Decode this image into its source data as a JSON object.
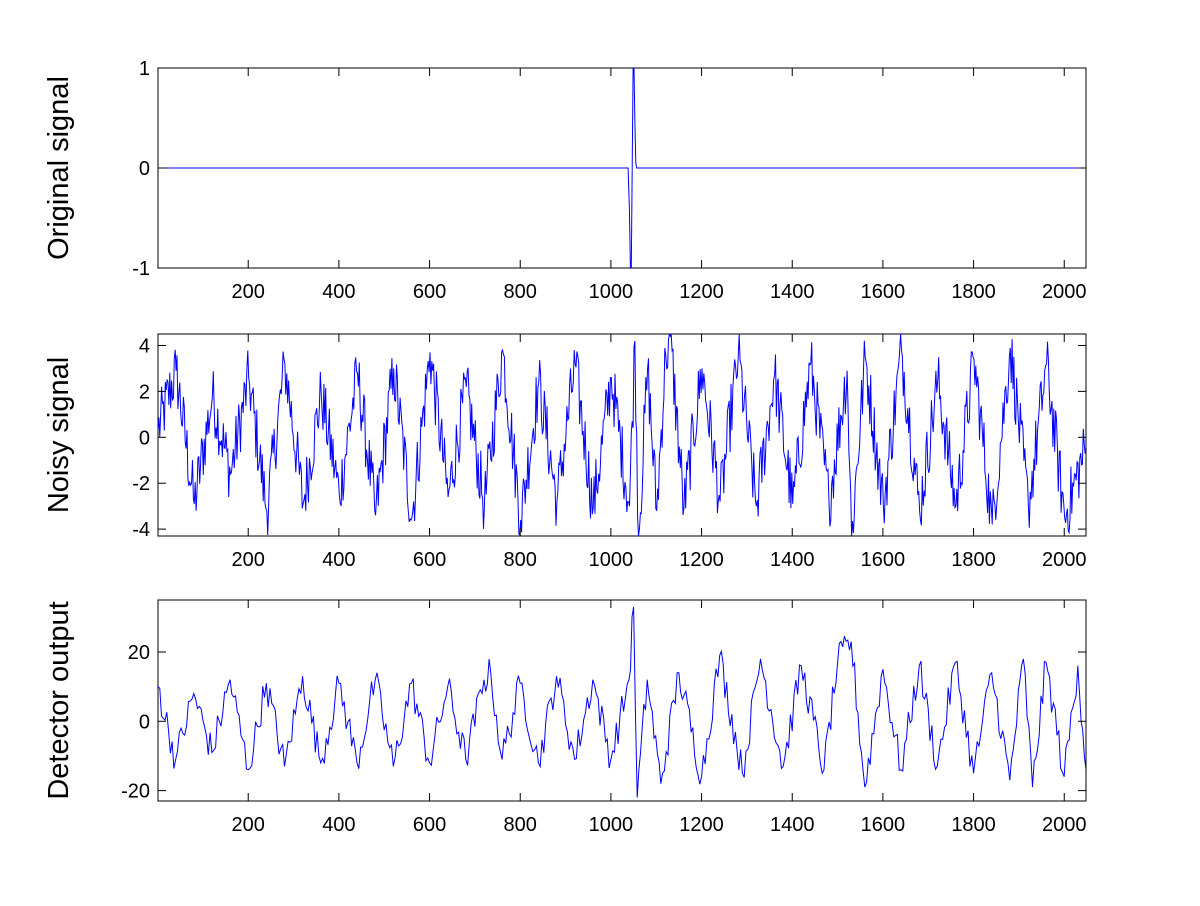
{
  "chart_data": [
    {
      "type": "line",
      "title": "",
      "xlabel": "",
      "ylabel": "Original signal",
      "xlim": [
        1,
        2048
      ],
      "ylim": [
        -1,
        1
      ],
      "grid": false,
      "xticks": [
        200,
        400,
        600,
        800,
        1000,
        1200,
        1400,
        1600,
        1800,
        2000
      ],
      "xtick_labels": [
        "200",
        "400",
        "600",
        "800",
        "1000",
        "1200",
        "1400",
        "1600",
        "1800",
        "2000"
      ],
      "yticks": [
        -1,
        0,
        1
      ],
      "ytick_labels": [
        "-1",
        "0",
        "1"
      ],
      "color": "#0000ff",
      "series": [
        {
          "x": [
            1,
            1038,
            1041,
            1043,
            1045,
            1047,
            1049,
            1051,
            1053,
            1055,
            1057,
            2048
          ],
          "y": [
            0,
            0,
            -0.45,
            -1.0,
            -1.0,
            0.0,
            1.0,
            1.0,
            0.45,
            0.05,
            0,
            0
          ]
        }
      ]
    },
    {
      "type": "line",
      "title": "",
      "xlabel": "",
      "ylabel": "Noisy signal",
      "xlim": [
        1,
        2048
      ],
      "ylim": [
        -4.3,
        4.5
      ],
      "grid": false,
      "xticks": [
        200,
        400,
        600,
        800,
        1000,
        1200,
        1400,
        1600,
        1800,
        2000
      ],
      "xtick_labels": [
        "200",
        "400",
        "600",
        "800",
        "1000",
        "1200",
        "1400",
        "1600",
        "1800",
        "2000"
      ],
      "yticks": [
        -4,
        -2,
        0,
        2,
        4
      ],
      "ytick_labels": [
        "-4",
        "-2",
        "0",
        "2",
        "4"
      ],
      "color": "#0000ff",
      "series": [
        {
          "x": [
            1,
            41,
            81,
            121,
            161,
            201,
            241,
            281,
            321,
            361,
            401,
            441,
            481,
            521,
            561,
            601,
            641,
            681,
            721,
            761,
            801,
            841,
            881,
            921,
            961,
            1001,
            1041,
            1053,
            1061,
            1081,
            1101,
            1121,
            1131,
            1161,
            1201,
            1241,
            1281,
            1321,
            1361,
            1401,
            1441,
            1481,
            1521,
            1531,
            1561,
            1601,
            1641,
            1681,
            1721,
            1761,
            1801,
            1841,
            1881,
            1921,
            1961,
            2001,
            2048
          ],
          "y": [
            0.3,
            2.9,
            -2.9,
            1.8,
            -1.6,
            2.6,
            -3.2,
            3.2,
            -2.9,
            1.9,
            -2.5,
            2.8,
            -3.4,
            3.0,
            -3.5,
            3.7,
            -2.6,
            2.2,
            -3.0,
            3.8,
            -3.6,
            2.4,
            -2.8,
            3.2,
            -3.1,
            2.6,
            -3.0,
            4.2,
            -4.3,
            3.0,
            -3.2,
            3.6,
            4.4,
            -3.1,
            3.0,
            -2.8,
            3.6,
            -3.0,
            2.7,
            -2.9,
            3.2,
            -2.8,
            2.9,
            -4.3,
            3.5,
            -3.0,
            3.8,
            -3.2,
            2.5,
            -3.0,
            3.4,
            -3.8,
            3.9,
            -3.0,
            3.2,
            -3.5,
            -0.4
          ]
        }
      ]
    },
    {
      "type": "line",
      "title": "",
      "xlabel": "",
      "ylabel": "Detector output",
      "xlim": [
        1,
        2048
      ],
      "ylim": [
        -23,
        35
      ],
      "grid": false,
      "xticks": [
        200,
        400,
        600,
        800,
        1000,
        1200,
        1400,
        1600,
        1800,
        2000
      ],
      "xtick_labels": [
        "200",
        "400",
        "600",
        "800",
        "1000",
        "1200",
        "1400",
        "1600",
        "1800",
        "2000"
      ],
      "yticks": [
        -20,
        0,
        20
      ],
      "ytick_labels": [
        "-20",
        "0",
        "20"
      ],
      "color": "#0000ff",
      "series": [
        {
          "x": [
            1,
            40,
            80,
            120,
            160,
            200,
            240,
            280,
            320,
            360,
            400,
            440,
            480,
            520,
            560,
            600,
            640,
            680,
            720,
            735,
            760,
            800,
            840,
            880,
            920,
            960,
            1000,
            1040,
            1050,
            1058,
            1080,
            1110,
            1150,
            1200,
            1240,
            1290,
            1330,
            1380,
            1420,
            1470,
            1500,
            1530,
            1560,
            1600,
            1640,
            1680,
            1720,
            1760,
            1800,
            1840,
            1880,
            1910,
            1930,
            1960,
            2000,
            2030,
            2048
          ],
          "y": [
            10,
            -11,
            8,
            -9,
            12,
            -14,
            11,
            -13,
            13,
            -12,
            11,
            -12,
            12,
            -13,
            11,
            -12,
            10,
            -11,
            12,
            14,
            -11,
            11,
            -12,
            13,
            -11,
            12,
            -11,
            12,
            33,
            -22,
            12,
            -18,
            14,
            -16,
            19,
            -15,
            18,
            -13,
            16,
            -14,
            17,
            23,
            -19,
            15,
            -14,
            16,
            -13,
            17,
            -15,
            14,
            -17,
            18,
            -19,
            17,
            -16,
            16,
            -14
          ]
        }
      ]
    }
  ]
}
